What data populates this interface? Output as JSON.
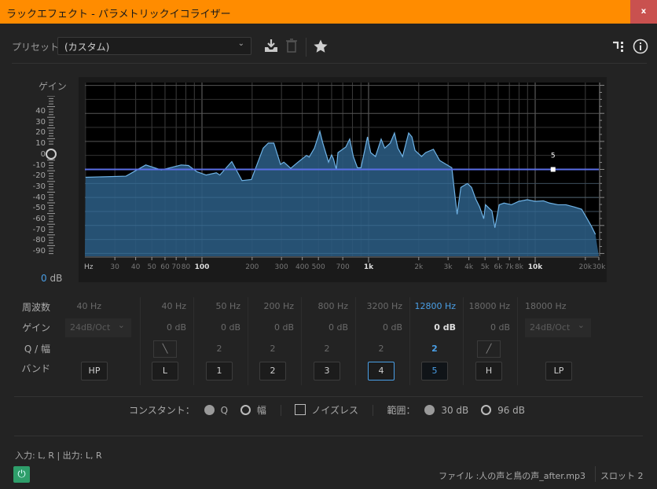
{
  "window": {
    "title": "ラックエフェクト - パラメトリックイコライザー",
    "close_label": "x"
  },
  "preset": {
    "label": "プリセット：",
    "value": "(カスタム)"
  },
  "toolbar": {
    "save_icon": "download-icon",
    "delete_icon": "trash-icon",
    "favorite_icon": "star-icon",
    "routing_icon": "routing-icon",
    "info_icon": "info-icon"
  },
  "gain_meter": {
    "title": "ゲイン",
    "scale": [
      "40",
      "30",
      "20",
      "10",
      "0",
      "-10",
      "-20",
      "-30",
      "-40",
      "-50",
      "-60",
      "-70",
      "-80",
      "-90"
    ],
    "value": "0",
    "unit": "dB"
  },
  "graph": {
    "x_scale": "log",
    "x_unit_label": "Hz",
    "x_ticks": [
      {
        "f": 30,
        "t": "30"
      },
      {
        "f": 40,
        "t": "40"
      },
      {
        "f": 50,
        "t": "50"
      },
      {
        "f": 60,
        "t": "60"
      },
      {
        "f": 70,
        "t": "70"
      },
      {
        "f": 80,
        "t": "80"
      },
      {
        "f": 100,
        "t": "100",
        "major": true
      },
      {
        "f": 200,
        "t": "200"
      },
      {
        "f": 300,
        "t": "300"
      },
      {
        "f": 400,
        "t": "400"
      },
      {
        "f": 500,
        "t": "500"
      },
      {
        "f": 700,
        "t": "700"
      },
      {
        "f": 1000,
        "t": "1k",
        "major": true
      },
      {
        "f": 2000,
        "t": "2k"
      },
      {
        "f": 3000,
        "t": "3k"
      },
      {
        "f": 4000,
        "t": "4k"
      },
      {
        "f": 5000,
        "t": "5k"
      },
      {
        "f": 6000,
        "t": "6k"
      },
      {
        "f": 7000,
        "t": "7k"
      },
      {
        "f": 8000,
        "t": "8k"
      },
      {
        "f": 10000,
        "t": "10k",
        "major": true
      },
      {
        "f": 20000,
        "t": "20k"
      },
      {
        "f": 30000,
        "t": "30k"
      }
    ],
    "y_unit_label": "dB",
    "y_ticks": [
      "10",
      "5",
      "0",
      "-5",
      "-10",
      "-15"
    ],
    "y_range": [
      -15.5,
      15.5
    ],
    "eq_curve_db": 0,
    "selected_node": {
      "label": "5",
      "freq": 12800,
      "gain": 0
    },
    "colors": {
      "fill": "#2a5a80",
      "spectrum_line": "#6fb3e6",
      "eq_line": "#5a6ee6"
    },
    "spectrum": [
      [
        20,
        -1.4
      ],
      [
        35,
        -1.2
      ],
      [
        46,
        0.8
      ],
      [
        57,
        -0.1
      ],
      [
        75,
        0.8
      ],
      [
        83,
        0.7
      ],
      [
        93,
        -0.4
      ],
      [
        106,
        -1
      ],
      [
        122,
        -0.6
      ],
      [
        128,
        -1
      ],
      [
        151,
        1.4
      ],
      [
        174,
        -2
      ],
      [
        198,
        -1.8
      ],
      [
        233,
        3.8
      ],
      [
        250,
        4.7
      ],
      [
        270,
        4.7
      ],
      [
        296,
        0.9
      ],
      [
        310,
        1.3
      ],
      [
        341,
        0.2
      ],
      [
        370,
        1.1
      ],
      [
        424,
        2.5
      ],
      [
        440,
        2.2
      ],
      [
        473,
        3.8
      ],
      [
        510,
        6.8
      ],
      [
        530,
        4.8
      ],
      [
        575,
        1.3
      ],
      [
        600,
        2.6
      ],
      [
        615,
        1.9
      ],
      [
        640,
        0
      ],
      [
        655,
        3
      ],
      [
        730,
        4
      ],
      [
        770,
        5.4
      ],
      [
        810,
        2.3
      ],
      [
        857,
        0.3
      ],
      [
        900,
        0.3
      ],
      [
        954,
        3.8
      ],
      [
        985,
        5.8
      ],
      [
        1030,
        3
      ],
      [
        1100,
        2.3
      ],
      [
        1190,
        5.4
      ],
      [
        1250,
        3.8
      ],
      [
        1350,
        4.7
      ],
      [
        1430,
        6.5
      ],
      [
        1500,
        3.8
      ],
      [
        1600,
        2.3
      ],
      [
        1740,
        6.5
      ],
      [
        1820,
        5.8
      ],
      [
        1900,
        3.4
      ],
      [
        2080,
        2.3
      ],
      [
        2200,
        3
      ],
      [
        2450,
        3.6
      ],
      [
        2670,
        1.6
      ],
      [
        3000,
        0.7
      ],
      [
        3160,
        0.3
      ],
      [
        3330,
        -5.7
      ],
      [
        3400,
        -8
      ],
      [
        3580,
        -3.2
      ],
      [
        3920,
        -2.5
      ],
      [
        4150,
        -3.2
      ],
      [
        4400,
        -5.3
      ],
      [
        4640,
        -6.7
      ],
      [
        4910,
        -8.8
      ],
      [
        5030,
        -6.3
      ],
      [
        5500,
        -7.4
      ],
      [
        5730,
        -10.4
      ],
      [
        6080,
        -6.3
      ],
      [
        6500,
        -6
      ],
      [
        7200,
        -6.3
      ],
      [
        7970,
        -5.7
      ],
      [
        8960,
        -5.4
      ],
      [
        10000,
        -5.7
      ],
      [
        11200,
        -5.6
      ],
      [
        12200,
        -6
      ],
      [
        13700,
        -6.3
      ],
      [
        15300,
        -6.3
      ],
      [
        17200,
        -6.7
      ],
      [
        19000,
        -7.1
      ],
      [
        20700,
        -9
      ],
      [
        21800,
        -10.2
      ],
      [
        23000,
        -11.6
      ]
    ]
  },
  "bands": {
    "row_labels": {
      "freq": "周波数",
      "gain": "ゲイン",
      "q": "Q / 幅",
      "band": "バンド"
    },
    "columns": [
      {
        "freq": "40 Hz",
        "gain": "24dB/Oct",
        "gain_is_dropdown": true,
        "q": "",
        "band": "HP"
      },
      {
        "freq": "40 Hz",
        "gain": "0 dB",
        "q_icon": "low-shelf-icon",
        "band": "L"
      },
      {
        "freq": "50 Hz",
        "gain": "0 dB",
        "q": "2",
        "band": "1"
      },
      {
        "freq": "200 Hz",
        "gain": "0 dB",
        "q": "2",
        "band": "2"
      },
      {
        "freq": "800 Hz",
        "gain": "0 dB",
        "q": "2",
        "band": "3"
      },
      {
        "freq": "3200 Hz",
        "gain": "0 dB",
        "q": "2",
        "band": "4",
        "focused": true
      },
      {
        "freq": "12800 Hz",
        "gain": "0 dB",
        "q": "2",
        "band": "5",
        "selected": true
      },
      {
        "freq": "18000 Hz",
        "gain": "0 dB",
        "q_icon": "high-shelf-icon",
        "band": "H"
      },
      {
        "freq": "18000 Hz",
        "gain": "24dB/Oct",
        "gain_is_dropdown": true,
        "q": "",
        "band": "LP"
      }
    ],
    "accent": "#4a9fe6"
  },
  "options": {
    "constant_label": "コンスタント：",
    "q_label": "Q",
    "q_selected": true,
    "width_label": "幅",
    "noiseless_label": "ノイズレス",
    "noiseless_checked": false,
    "range_label": "範囲：",
    "range_30": "30 dB",
    "range_30_selected": true,
    "range_96": "96 dB"
  },
  "footer": {
    "io": "入力: L, R | 出力: L, R",
    "file": "ファイル :人の声と鳥の声_after.mp3",
    "slot": "スロット 2",
    "power_on": true
  }
}
